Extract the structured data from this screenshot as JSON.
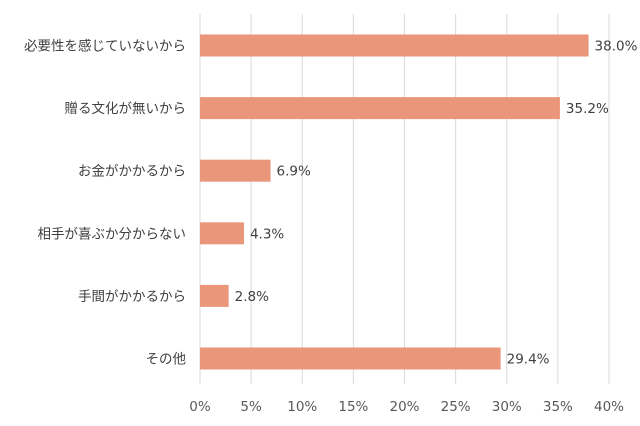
{
  "chart_data": {
    "type": "bar",
    "orientation": "horizontal",
    "categories": [
      "必要性を感じていないから",
      "贈る文化が無いから",
      "お金がかかるから",
      "相手が喜ぶか分からない",
      "手間がかかるから",
      "その他"
    ],
    "values": [
      38.0,
      35.2,
      6.9,
      4.3,
      2.8,
      29.4
    ],
    "value_labels": [
      "38.0%",
      "35.2%",
      "6.9%",
      "4.3%",
      "2.8%",
      "29.4%"
    ],
    "xlim": [
      0,
      40
    ],
    "xticks": [
      0,
      5,
      10,
      15,
      20,
      25,
      30,
      35,
      40
    ],
    "xtick_labels": [
      "0%",
      "5%",
      "10%",
      "15%",
      "20%",
      "25%",
      "30%",
      "35%",
      "40%"
    ],
    "grid": true,
    "legend": "none",
    "bar_color": "#e9967a"
  }
}
